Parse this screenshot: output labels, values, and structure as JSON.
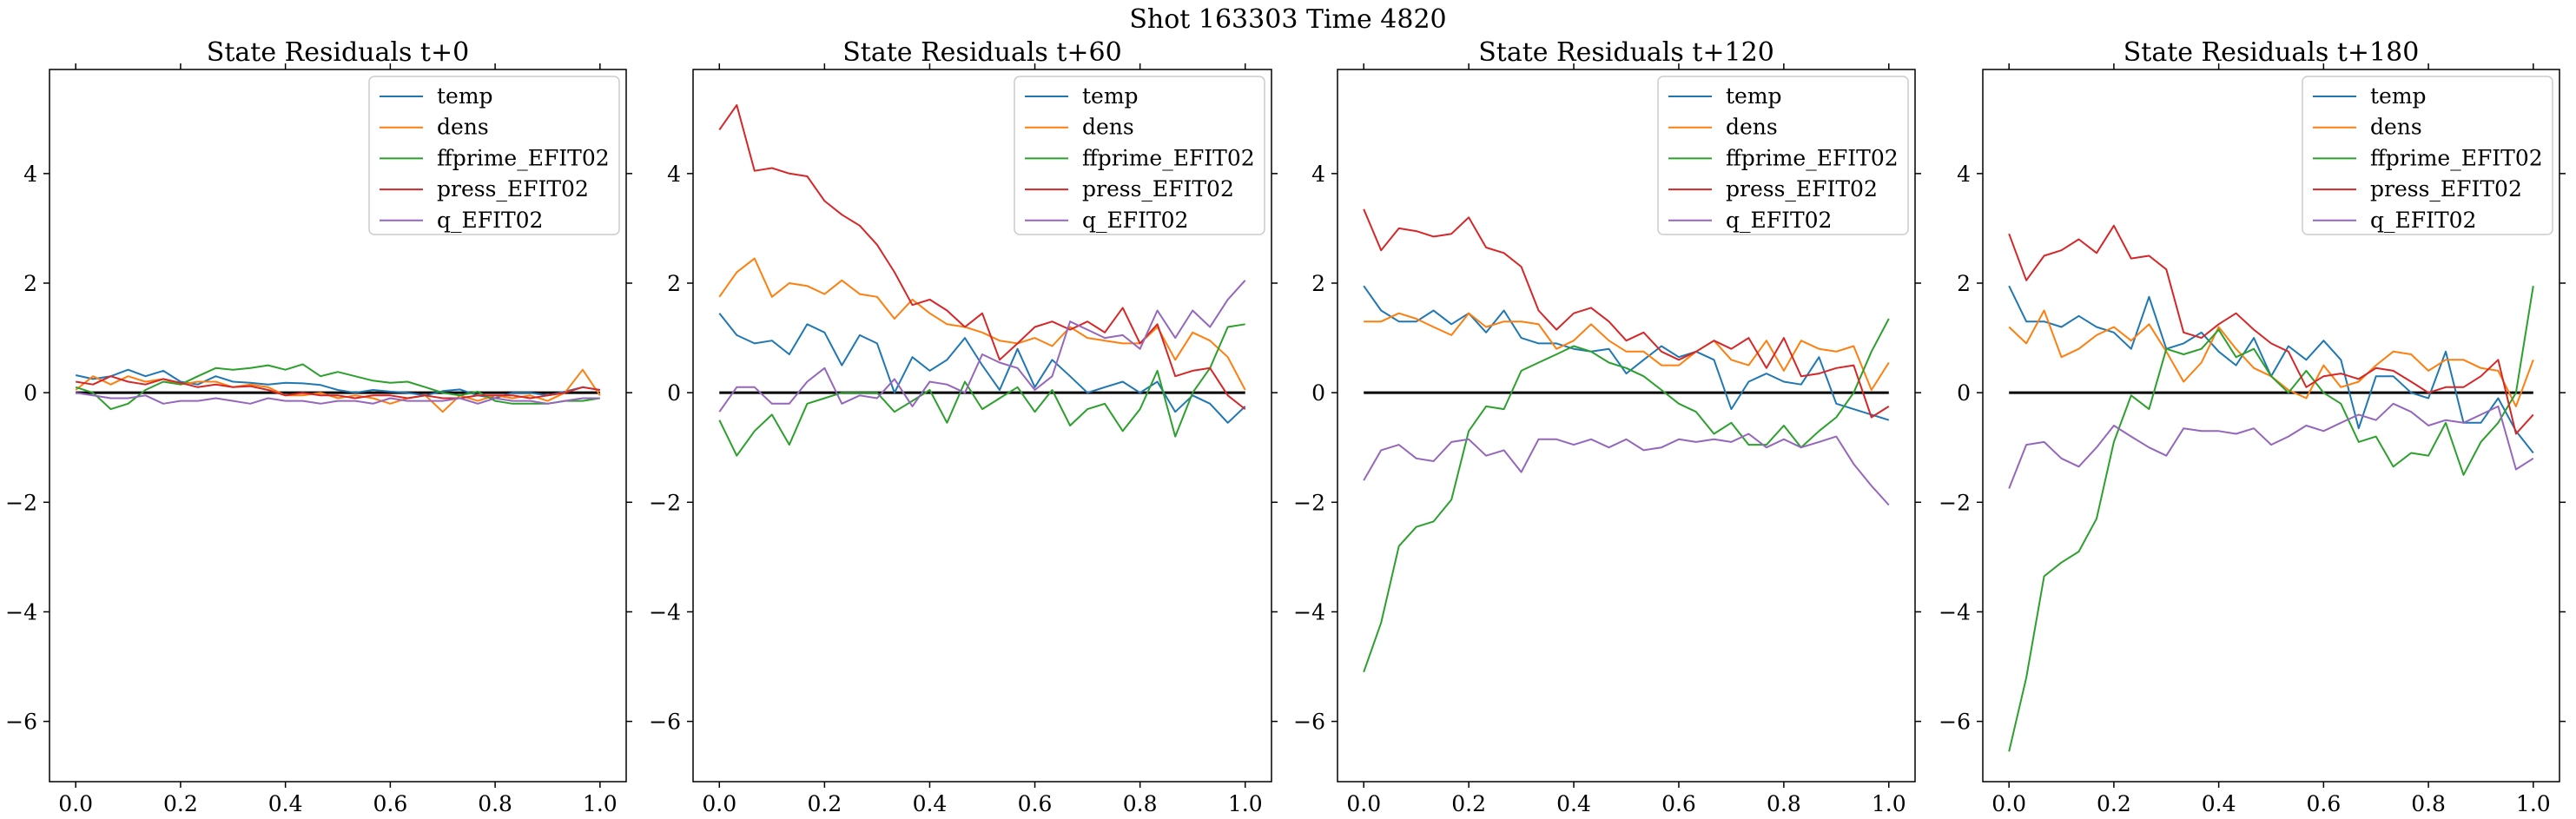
{
  "suptitle": "Shot 163303   Time 4820",
  "colors": {
    "temp": "#1f77b4",
    "dens": "#ff7f0e",
    "ffprime_EFIT02": "#2ca02c",
    "press_EFIT02": "#d62728",
    "q_EFIT02": "#9467bd",
    "zero_line": "#000000"
  },
  "chart_data": [
    {
      "type": "line",
      "title": "State Residuals t+0",
      "xlim": [
        -0.05,
        1.05
      ],
      "ylim": [
        -7.1,
        5.9
      ],
      "xticks": [
        0.0,
        0.2,
        0.4,
        0.6,
        0.8,
        1.0
      ],
      "xtick_labels": [
        "0.0",
        "0.2",
        "0.4",
        "0.6",
        "0.8",
        "1.0"
      ],
      "yticks": [
        -6,
        -4,
        -2,
        0,
        2,
        4
      ],
      "ytick_labels": [
        "−6",
        "−4",
        "−2",
        "0",
        "2",
        "4"
      ],
      "show_ytick_labels": true,
      "legend": "top-right",
      "zero_line": true,
      "x": [
        0.0,
        0.033,
        0.067,
        0.1,
        0.133,
        0.167,
        0.2,
        0.233,
        0.267,
        0.3,
        0.333,
        0.367,
        0.4,
        0.433,
        0.467,
        0.5,
        0.533,
        0.567,
        0.6,
        0.633,
        0.667,
        0.7,
        0.733,
        0.767,
        0.8,
        0.833,
        0.867,
        0.9,
        0.933,
        0.967,
        1.0
      ],
      "series": [
        {
          "name": "temp",
          "values": [
            0.32,
            0.25,
            0.3,
            0.42,
            0.3,
            0.4,
            0.2,
            0.15,
            0.3,
            0.2,
            0.18,
            0.15,
            0.18,
            0.17,
            0.14,
            0.05,
            0.0,
            0.05,
            0.02,
            0.0,
            -0.05,
            0.03,
            0.06,
            -0.05,
            -0.1,
            0.0,
            0.0,
            -0.05,
            0.02,
            0.1,
            0.05
          ]
        },
        {
          "name": "dens",
          "values": [
            0.05,
            0.3,
            0.15,
            0.3,
            0.2,
            0.25,
            0.15,
            0.2,
            0.2,
            0.1,
            0.15,
            0.1,
            -0.05,
            -0.05,
            0.0,
            -0.1,
            -0.05,
            -0.1,
            -0.2,
            -0.1,
            -0.05,
            -0.35,
            -0.05,
            -0.15,
            -0.05,
            -0.1,
            -0.05,
            -0.15,
            0.0,
            0.42,
            -0.05
          ]
        },
        {
          "name": "ffprime_EFIT02",
          "values": [
            0.1,
            0.0,
            -0.3,
            -0.2,
            0.05,
            0.2,
            0.15,
            0.3,
            0.45,
            0.42,
            0.45,
            0.5,
            0.42,
            0.52,
            0.3,
            0.38,
            0.3,
            0.22,
            0.18,
            0.2,
            0.1,
            0.0,
            -0.05,
            0.02,
            -0.15,
            -0.2,
            -0.2,
            -0.2,
            -0.15,
            -0.15,
            -0.1
          ]
        },
        {
          "name": "press_EFIT02",
          "values": [
            0.2,
            0.15,
            0.3,
            0.2,
            0.15,
            0.25,
            0.18,
            0.1,
            0.15,
            0.1,
            0.12,
            0.05,
            -0.05,
            0.0,
            -0.05,
            -0.05,
            -0.1,
            -0.05,
            -0.05,
            -0.1,
            -0.05,
            -0.1,
            -0.1,
            -0.05,
            -0.05,
            -0.05,
            -0.1,
            -0.05,
            0.0,
            0.1,
            0.05
          ]
        },
        {
          "name": "q_EFIT02",
          "values": [
            0.0,
            -0.05,
            -0.1,
            -0.1,
            -0.05,
            -0.2,
            -0.15,
            -0.15,
            -0.1,
            -0.15,
            -0.2,
            -0.1,
            -0.15,
            -0.15,
            -0.2,
            -0.15,
            -0.15,
            -0.2,
            -0.1,
            -0.15,
            -0.15,
            -0.15,
            -0.1,
            -0.2,
            -0.1,
            -0.15,
            -0.15,
            -0.2,
            -0.15,
            -0.1,
            -0.1
          ]
        }
      ]
    },
    {
      "type": "line",
      "title": "State Residuals t+60",
      "xlim": [
        -0.05,
        1.05
      ],
      "ylim": [
        -7.1,
        5.9
      ],
      "xticks": [
        0.0,
        0.2,
        0.4,
        0.6,
        0.8,
        1.0
      ],
      "xtick_labels": [
        "0.0",
        "0.2",
        "0.4",
        "0.6",
        "0.8",
        "1.0"
      ],
      "yticks": [
        -6,
        -4,
        -2,
        0,
        2,
        4
      ],
      "ytick_labels": [
        "−6",
        "−4",
        "−2",
        "0",
        "2",
        "4"
      ],
      "show_ytick_labels": true,
      "legend": "top-right",
      "zero_line": true,
      "x": [
        0.0,
        0.033,
        0.067,
        0.1,
        0.133,
        0.167,
        0.2,
        0.233,
        0.267,
        0.3,
        0.333,
        0.367,
        0.4,
        0.433,
        0.467,
        0.5,
        0.533,
        0.567,
        0.6,
        0.633,
        0.667,
        0.7,
        0.733,
        0.767,
        0.8,
        0.833,
        0.867,
        0.9,
        0.933,
        0.967,
        1.0
      ],
      "series": [
        {
          "name": "temp",
          "values": [
            1.45,
            1.05,
            0.9,
            0.95,
            0.7,
            1.25,
            1.1,
            0.5,
            1.05,
            0.9,
            0.0,
            0.65,
            0.4,
            0.6,
            1.0,
            0.5,
            0.05,
            0.8,
            0.1,
            0.6,
            0.3,
            0.0,
            0.1,
            0.2,
            0.0,
            0.2,
            -0.35,
            -0.05,
            -0.2,
            -0.55,
            -0.25
          ]
        },
        {
          "name": "dens",
          "values": [
            1.75,
            2.2,
            2.45,
            1.75,
            2.0,
            1.95,
            1.8,
            2.05,
            1.8,
            1.75,
            1.35,
            1.7,
            1.45,
            1.25,
            1.2,
            1.1,
            0.95,
            0.9,
            1.0,
            0.85,
            1.2,
            1.0,
            0.95,
            0.9,
            0.9,
            1.2,
            0.6,
            1.1,
            0.95,
            0.65,
            0.05
          ]
        },
        {
          "name": "ffprime_EFIT02",
          "values": [
            -0.5,
            -1.15,
            -0.7,
            -0.4,
            -0.95,
            -0.2,
            -0.1,
            0.0,
            0.0,
            0.0,
            -0.35,
            -0.15,
            0.05,
            -0.55,
            0.2,
            -0.3,
            -0.1,
            0.1,
            -0.35,
            0.05,
            -0.6,
            -0.3,
            -0.2,
            -0.7,
            -0.3,
            0.4,
            -0.8,
            0.0,
            0.45,
            1.2,
            1.25
          ]
        },
        {
          "name": "press_EFIT02",
          "values": [
            4.8,
            5.25,
            4.05,
            4.1,
            4.0,
            3.95,
            3.5,
            3.25,
            3.05,
            2.7,
            2.2,
            1.6,
            1.7,
            1.5,
            1.2,
            1.45,
            0.6,
            0.9,
            1.2,
            1.3,
            1.15,
            1.3,
            1.1,
            1.55,
            0.9,
            1.25,
            0.3,
            0.4,
            0.45,
            -0.05,
            -0.3
          ]
        },
        {
          "name": "q_EFIT02",
          "values": [
            -0.35,
            0.1,
            0.1,
            -0.2,
            -0.2,
            0.2,
            0.45,
            -0.2,
            -0.05,
            -0.1,
            0.25,
            -0.25,
            0.2,
            0.15,
            0.0,
            0.7,
            0.55,
            0.45,
            0.05,
            0.3,
            1.3,
            1.15,
            1.0,
            1.05,
            0.8,
            1.5,
            1.0,
            1.5,
            1.2,
            1.7,
            2.05
          ]
        }
      ]
    },
    {
      "type": "line",
      "title": "State Residuals t+120",
      "xlim": [
        -0.05,
        1.05
      ],
      "ylim": [
        -7.1,
        5.9
      ],
      "xticks": [
        0.0,
        0.2,
        0.4,
        0.6,
        0.8,
        1.0
      ],
      "xtick_labels": [
        "0.0",
        "0.2",
        "0.4",
        "0.6",
        "0.8",
        "1.0"
      ],
      "yticks": [
        -6,
        -4,
        -2,
        0,
        2,
        4
      ],
      "ytick_labels": [
        "−6",
        "−4",
        "−2",
        "0",
        "2",
        "4"
      ],
      "show_ytick_labels": true,
      "legend": "top-right",
      "zero_line": true,
      "x": [
        0.0,
        0.033,
        0.067,
        0.1,
        0.133,
        0.167,
        0.2,
        0.233,
        0.267,
        0.3,
        0.333,
        0.367,
        0.4,
        0.433,
        0.467,
        0.5,
        0.533,
        0.567,
        0.6,
        0.633,
        0.667,
        0.7,
        0.733,
        0.767,
        0.8,
        0.833,
        0.867,
        0.9,
        0.933,
        0.967,
        1.0
      ],
      "series": [
        {
          "name": "temp",
          "values": [
            1.95,
            1.5,
            1.3,
            1.3,
            1.5,
            1.25,
            1.45,
            1.1,
            1.5,
            1.0,
            0.9,
            0.9,
            0.8,
            0.75,
            0.8,
            0.35,
            0.6,
            0.85,
            0.65,
            0.75,
            0.6,
            -0.3,
            0.2,
            0.35,
            0.2,
            0.15,
            0.65,
            -0.2,
            -0.3,
            -0.4,
            -0.5
          ]
        },
        {
          "name": "dens",
          "values": [
            1.3,
            1.3,
            1.45,
            1.35,
            1.2,
            1.05,
            1.45,
            1.2,
            1.3,
            1.3,
            1.25,
            0.8,
            0.95,
            1.25,
            0.95,
            0.75,
            0.75,
            0.5,
            0.5,
            0.75,
            0.95,
            0.6,
            0.5,
            0.95,
            0.4,
            0.95,
            0.8,
            0.75,
            0.85,
            0.05,
            0.55
          ]
        },
        {
          "name": "ffprime_EFIT02",
          "values": [
            -5.1,
            -4.2,
            -2.8,
            -2.45,
            -2.35,
            -1.95,
            -0.7,
            -0.25,
            -0.3,
            0.4,
            0.55,
            0.7,
            0.85,
            0.75,
            0.55,
            0.45,
            0.3,
            0.05,
            -0.2,
            -0.35,
            -0.75,
            -0.55,
            -0.95,
            -0.95,
            -0.6,
            -1.0,
            -0.7,
            -0.45,
            0.0,
            0.75,
            1.35
          ]
        },
        {
          "name": "press_EFIT02",
          "values": [
            3.35,
            2.6,
            3.0,
            2.95,
            2.85,
            2.9,
            3.2,
            2.65,
            2.55,
            2.3,
            1.5,
            1.15,
            1.45,
            1.55,
            1.3,
            0.95,
            1.1,
            0.75,
            0.6,
            0.75,
            0.95,
            0.8,
            1.0,
            0.45,
            1.0,
            0.3,
            0.35,
            0.45,
            0.5,
            -0.45,
            -0.25
          ]
        },
        {
          "name": "q_EFIT02",
          "values": [
            -1.6,
            -1.05,
            -0.95,
            -1.2,
            -1.25,
            -0.9,
            -0.85,
            -1.15,
            -1.05,
            -1.45,
            -0.85,
            -0.85,
            -0.95,
            -0.85,
            -1.0,
            -0.85,
            -1.05,
            -1.0,
            -0.85,
            -0.9,
            -0.85,
            -0.9,
            -0.75,
            -1.0,
            -0.85,
            -1.0,
            -0.9,
            -0.8,
            -1.3,
            -1.7,
            -2.05
          ]
        }
      ]
    },
    {
      "type": "line",
      "title": "State Residuals t+180",
      "xlim": [
        -0.05,
        1.05
      ],
      "ylim": [
        -7.1,
        5.9
      ],
      "xticks": [
        0.0,
        0.2,
        0.4,
        0.6,
        0.8,
        1.0
      ],
      "xtick_labels": [
        "0.0",
        "0.2",
        "0.4",
        "0.6",
        "0.8",
        "1.0"
      ],
      "yticks": [
        -6,
        -4,
        -2,
        0,
        2,
        4
      ],
      "ytick_labels": [
        "−6",
        "−4",
        "−2",
        "0",
        "2",
        "4"
      ],
      "show_ytick_labels": true,
      "legend": "top-right",
      "zero_line": true,
      "x": [
        0.0,
        0.033,
        0.067,
        0.1,
        0.133,
        0.167,
        0.2,
        0.233,
        0.267,
        0.3,
        0.333,
        0.367,
        0.4,
        0.433,
        0.467,
        0.5,
        0.533,
        0.567,
        0.6,
        0.633,
        0.667,
        0.7,
        0.733,
        0.767,
        0.8,
        0.833,
        0.867,
        0.9,
        0.933,
        0.967,
        1.0
      ],
      "series": [
        {
          "name": "temp",
          "values": [
            1.95,
            1.3,
            1.3,
            1.2,
            1.4,
            1.2,
            1.1,
            0.8,
            1.75,
            0.8,
            0.9,
            1.1,
            0.75,
            0.5,
            1.0,
            0.3,
            0.85,
            0.6,
            0.95,
            0.6,
            -0.65,
            0.3,
            0.3,
            0.0,
            -0.1,
            0.75,
            -0.55,
            -0.55,
            -0.1,
            -0.7,
            -1.1
          ]
        },
        {
          "name": "dens",
          "values": [
            1.2,
            0.9,
            1.5,
            0.65,
            0.8,
            1.05,
            1.2,
            0.95,
            1.25,
            0.75,
            0.2,
            0.55,
            1.2,
            0.8,
            0.45,
            0.3,
            0.05,
            -0.1,
            0.5,
            0.1,
            0.2,
            0.5,
            0.75,
            0.7,
            0.4,
            0.6,
            0.6,
            0.45,
            0.4,
            -0.25,
            0.6
          ]
        },
        {
          "name": "ffprime_EFIT02",
          "values": [
            -6.55,
            -5.2,
            -3.35,
            -3.1,
            -2.9,
            -2.3,
            -0.9,
            -0.05,
            -0.3,
            0.8,
            0.7,
            0.8,
            1.15,
            0.65,
            0.8,
            0.3,
            0.0,
            0.4,
            0.0,
            -0.2,
            -0.9,
            -0.8,
            -1.35,
            -1.1,
            -1.15,
            -0.55,
            -1.5,
            -0.9,
            -0.55,
            0.0,
            1.95
          ]
        },
        {
          "name": "press_EFIT02",
          "values": [
            2.9,
            2.05,
            2.5,
            2.6,
            2.8,
            2.55,
            3.05,
            2.45,
            2.5,
            2.25,
            1.1,
            1.0,
            1.25,
            1.45,
            1.15,
            0.9,
            0.75,
            0.1,
            0.3,
            0.35,
            0.25,
            0.45,
            0.4,
            0.2,
            0.0,
            0.1,
            0.1,
            0.3,
            0.6,
            -0.75,
            -0.4
          ]
        },
        {
          "name": "q_EFIT02",
          "values": [
            -1.75,
            -0.95,
            -0.9,
            -1.2,
            -1.35,
            -1.0,
            -0.6,
            -0.8,
            -1.0,
            -1.15,
            -0.65,
            -0.7,
            -0.7,
            -0.75,
            -0.65,
            -0.95,
            -0.8,
            -0.6,
            -0.7,
            -0.55,
            -0.4,
            -0.5,
            -0.2,
            -0.35,
            -0.6,
            -0.5,
            -0.55,
            -0.4,
            -0.25,
            -1.4,
            -1.2
          ]
        }
      ]
    }
  ]
}
